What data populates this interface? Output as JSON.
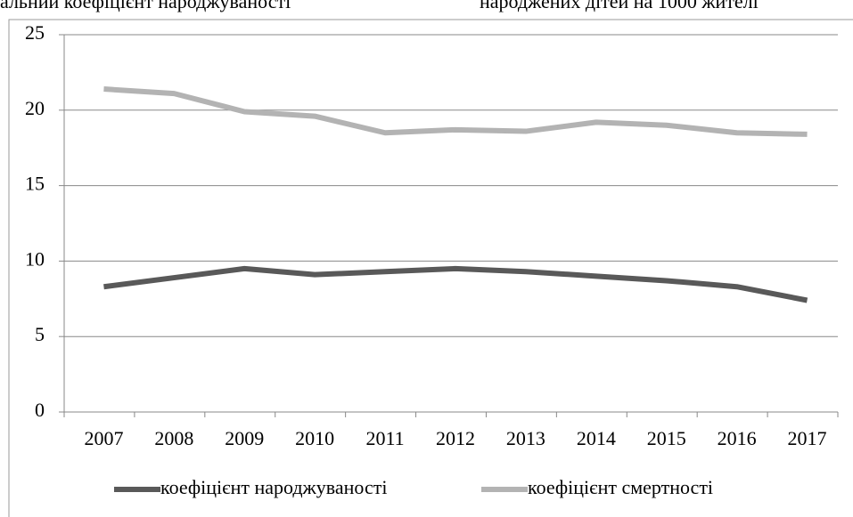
{
  "annotations": [
    "альний коефіцієнт народжуваності",
    "народжених дітей на 1000 жителі"
  ],
  "chart_data": {
    "type": "line",
    "categories": [
      "2007",
      "2008",
      "2009",
      "2010",
      "2011",
      "2012",
      "2013",
      "2014",
      "2015",
      "2016",
      "2017"
    ],
    "series": [
      {
        "name": "коефіцієнт народжуваності",
        "color": "#595959",
        "values": [
          8.3,
          8.9,
          9.5,
          9.1,
          9.3,
          9.5,
          9.3,
          9.0,
          8.7,
          8.3,
          7.4
        ]
      },
      {
        "name": "коефіцієнт смертності",
        "color": "#b3b3b3",
        "values": [
          21.4,
          21.1,
          19.9,
          19.6,
          18.5,
          18.7,
          18.6,
          19.2,
          19.0,
          18.5,
          18.4
        ]
      }
    ],
    "ylim": [
      0,
      25
    ],
    "yticks": [
      0,
      5,
      10,
      15,
      20,
      25
    ],
    "grid": true,
    "legend": "bottom"
  }
}
